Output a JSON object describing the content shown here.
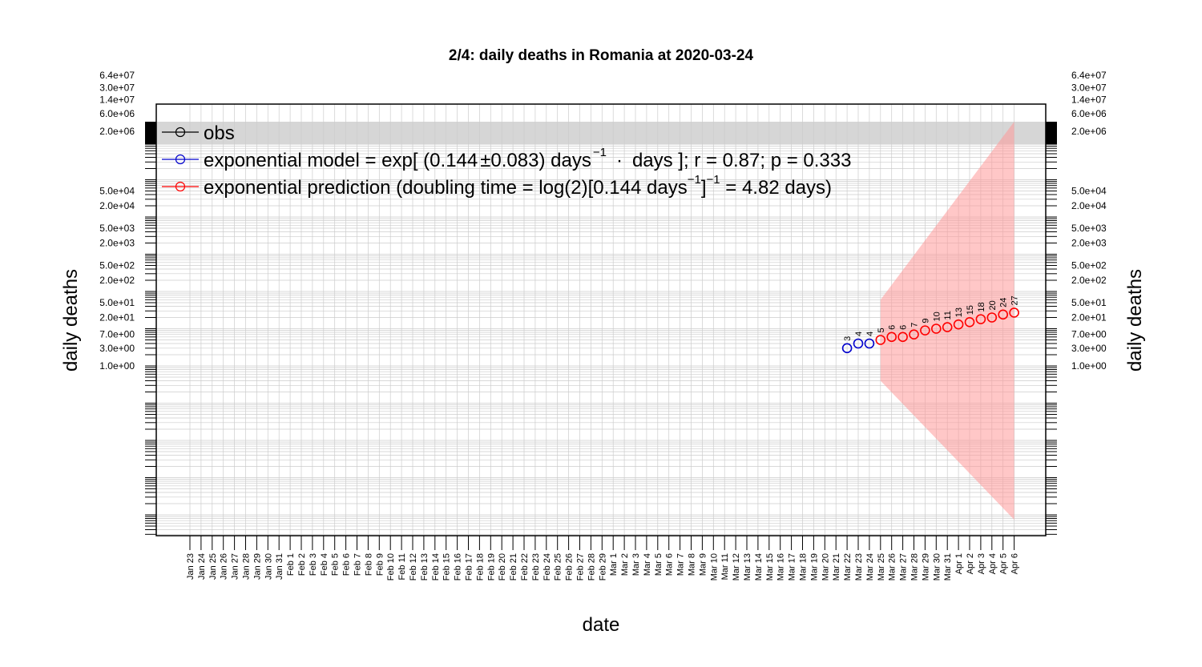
{
  "chart_data": {
    "type": "scatter",
    "title": "2/4: daily deaths in Romania at 2020-03-24",
    "xlabel": "date",
    "ylabel": "daily deaths",
    "y_scale": "log",
    "grid": true,
    "legend_placement": "top-left",
    "colors": {
      "obs": "#000000",
      "model": "#0000cc",
      "prediction": "#ff0000",
      "band": "#ff9999"
    },
    "x_tick_labels": [
      "Jan 23",
      "Jan 24",
      "Jan 25",
      "Jan 26",
      "Jan 27",
      "Jan 28",
      "Jan 29",
      "Jan 30",
      "Jan 31",
      "Feb 1",
      "Feb 2",
      "Feb 3",
      "Feb 4",
      "Feb 5",
      "Feb 6",
      "Feb 7",
      "Feb 8",
      "Feb 9",
      "Feb 10",
      "Feb 11",
      "Feb 12",
      "Feb 13",
      "Feb 14",
      "Feb 15",
      "Feb 16",
      "Feb 17",
      "Feb 18",
      "Feb 19",
      "Feb 20",
      "Feb 21",
      "Feb 22",
      "Feb 23",
      "Feb 24",
      "Feb 25",
      "Feb 26",
      "Feb 27",
      "Feb 28",
      "Feb 29",
      "Mar 1",
      "Mar 2",
      "Mar 3",
      "Mar 4",
      "Mar 5",
      "Mar 6",
      "Mar 7",
      "Mar 8",
      "Mar 9",
      "Mar 10",
      "Mar 11",
      "Mar 12",
      "Mar 13",
      "Mar 14",
      "Mar 15",
      "Mar 16",
      "Mar 17",
      "Mar 18",
      "Mar 19",
      "Mar 20",
      "Mar 21",
      "Mar 22",
      "Mar 23",
      "Mar 24",
      "Mar 25",
      "Mar 26",
      "Mar 27",
      "Mar 28",
      "Mar 29",
      "Mar 30",
      "Mar 31",
      "Apr 1",
      "Apr 2",
      "Apr 3",
      "Apr 4",
      "Apr 5",
      "Apr 6"
    ],
    "y_tick_labels": [
      "6.4e+07",
      "3.0e+07",
      "1.4e+07",
      "6.0e+06",
      "2.0e+06",
      "5.0e+04",
      "2.0e+04",
      "5.0e+03",
      "2.0e+03",
      "5.0e+02",
      "2.0e+02",
      "5.0e+01",
      "2.0e+01",
      "7.0e+00",
      "3.0e+00",
      "1.0e+00"
    ],
    "legend": {
      "obs": "obs",
      "model_pre": "exponential model = exp[ (0.144",
      "model_pm": "±",
      "model_mid": "0.083) days",
      "model_sup": "−1",
      "model_dot": "·",
      "model_post": "days ]; r = 0.87; p = 0.333",
      "pred_pre": "exponential prediction (doubling time = log(2)[0.144 days",
      "pred_sup1": "−1",
      "pred_mid": "]",
      "pred_sup2": "−1",
      "pred_post": " = 4.82 days)"
    },
    "series": [
      {
        "key": "model",
        "x": [
          "Mar 22",
          "Mar 23",
          "Mar 24"
        ],
        "values": [
          3,
          4,
          4
        ],
        "labels": [
          "3",
          "4",
          "4"
        ]
      },
      {
        "key": "prediction",
        "x": [
          "Mar 25",
          "Mar 26",
          "Mar 27",
          "Mar 28",
          "Mar 29",
          "Mar 30",
          "Mar 31",
          "Apr 1",
          "Apr 2",
          "Apr 3",
          "Apr 4",
          "Apr 5",
          "Apr 6"
        ],
        "values": [
          5,
          6,
          6,
          7,
          9,
          10,
          11,
          13,
          15,
          18,
          20,
          24,
          27
        ],
        "labels": [
          "5",
          "6",
          "6",
          "7",
          "9",
          "10",
          "11",
          "13",
          "15",
          "18",
          "20",
          "24",
          "27"
        ]
      }
    ],
    "band": {
      "x": [
        "Mar 25",
        "Apr 6"
      ],
      "upper": [
        60,
        64000000
      ],
      "lower": [
        0.4,
        3.5e-05
      ]
    }
  }
}
